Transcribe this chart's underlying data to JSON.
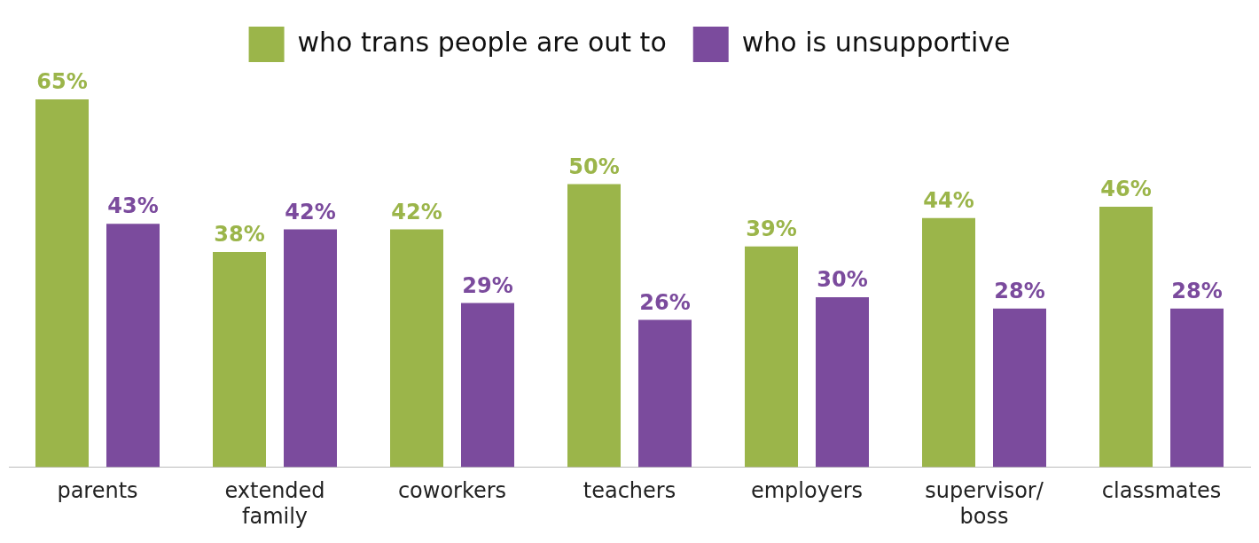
{
  "chart_data": {
    "type": "bar",
    "categories": [
      "parents",
      "extended family",
      "coworkers",
      "teachers",
      "employers",
      "supervisor/ boss",
      "classmates"
    ],
    "series": [
      {
        "name": "who trans people are out to",
        "color": "#9bb54a",
        "values": [
          65,
          38,
          42,
          50,
          39,
          44,
          46
        ],
        "value_labels": [
          "65%",
          "38%",
          "42%",
          "50%",
          "39%",
          "44%",
          "46%"
        ]
      },
      {
        "name": "who is unsupportive",
        "color": "#7b4b9d",
        "values": [
          43,
          42,
          29,
          26,
          30,
          28,
          28
        ],
        "value_labels": [
          "43%",
          "42%",
          "29%",
          "26%",
          "30%",
          "28%",
          "28%"
        ]
      }
    ],
    "legend": "top",
    "grid": false
  }
}
